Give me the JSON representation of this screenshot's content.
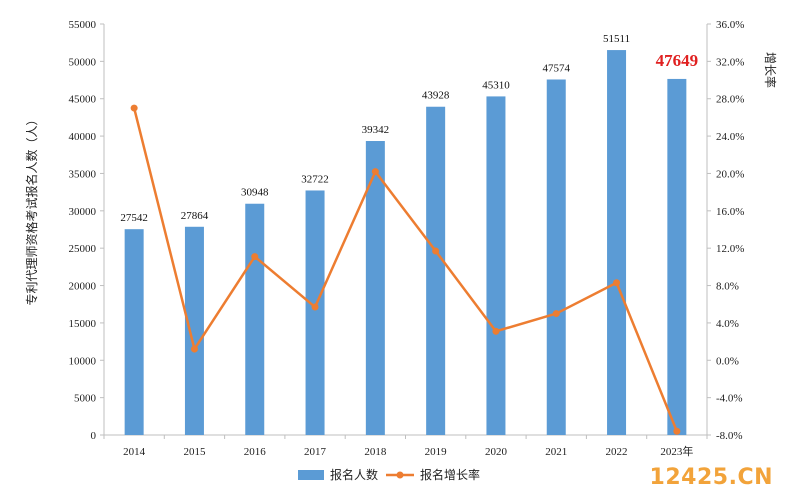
{
  "chart_data": {
    "type": "bar+line",
    "categories": [
      "2014",
      "2015",
      "2016",
      "2017",
      "2018",
      "2019",
      "2020",
      "2021",
      "2022",
      "2023年"
    ],
    "series": [
      {
        "name": "报名人数",
        "type": "bar",
        "axis": "left",
        "color": "#5b9bd5",
        "values": [
          27542,
          27864,
          30948,
          32722,
          39342,
          43928,
          45310,
          47574,
          51511,
          47649
        ],
        "data_labels": [
          "27542",
          "27864",
          "30948",
          "32722",
          "39342",
          "43928",
          "45310",
          "47574",
          "51511",
          "47649"
        ],
        "highlight_index": 9,
        "highlight_color": "#e02020"
      },
      {
        "name": "报名增长率",
        "type": "line",
        "axis": "right",
        "color": "#ed7d31",
        "values": [
          27.0,
          1.2,
          11.1,
          5.7,
          20.2,
          11.7,
          3.1,
          5.0,
          8.3,
          -7.6
        ]
      }
    ],
    "left_axis": {
      "label": "专利代理师资格考试报名人数（人）",
      "min": 0,
      "max": 55000,
      "ticks": [
        "0",
        "5000",
        "10000",
        "15000",
        "20000",
        "25000",
        "30000",
        "35000",
        "40000",
        "45000",
        "50000",
        "55000"
      ]
    },
    "right_axis": {
      "label": "增长率",
      "min": -8,
      "max": 36,
      "ticks": [
        "-8.0%",
        "-4.0%",
        "0.0%",
        "4.0%",
        "8.0%",
        "12.0%",
        "16.0%",
        "20.0%",
        "24.0%",
        "28.0%",
        "32.0%",
        "36.0%"
      ]
    },
    "legend": {
      "position": "bottom",
      "items": [
        "报名人数",
        "报名增长率"
      ]
    },
    "grid": false
  },
  "watermark": "12425.CN"
}
